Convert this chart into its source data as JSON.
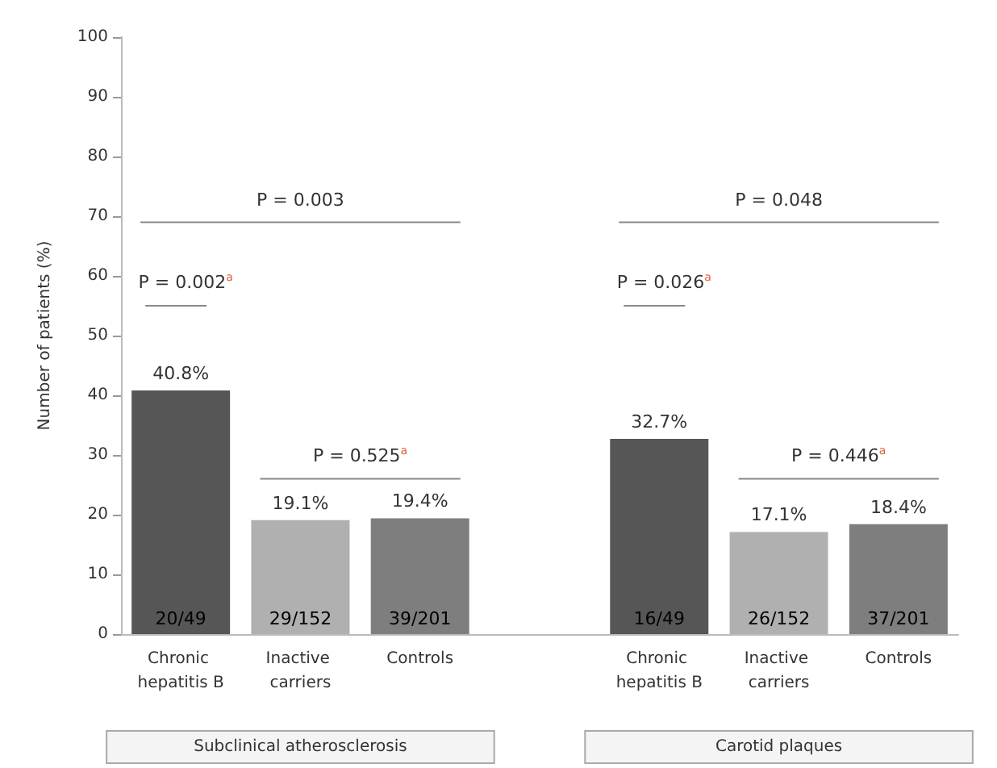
{
  "chart_data": {
    "type": "bar",
    "ylabel": "Number of patients (%)",
    "categories": [
      "Chronic hepatitis B",
      "Inactive carriers",
      "Controls",
      null,
      "Chronic hepatitis B",
      "Inactive carriers",
      "Controls"
    ],
    "values": [
      40.8,
      19.1,
      19.4,
      null,
      32.7,
      17.1,
      18.4
    ],
    "colors": [
      "#565656",
      "#b0b0b0",
      "#7e7e7e",
      null,
      "#565656",
      "#b0b0b0",
      "#7e7e7e"
    ],
    "value_labels": [
      "40.8%",
      "19.1%",
      "19.4%",
      null,
      "32.7%",
      "17.1%",
      "18.4%"
    ],
    "ylim": [
      0,
      100
    ],
    "yticks": [
      0,
      10,
      20,
      30,
      40,
      50,
      60,
      70,
      80,
      90,
      100
    ],
    "grid": false,
    "annotations": [
      "20/49",
      "29/152",
      "39/201",
      "16/49",
      "26/152",
      "37/201",
      "P = 0.002$^{a}$",
      "P = 0.003",
      "P = 0.525$^{a}$",
      "P = 0.026$^{a}$",
      "P = 0.048",
      "P = 0.446$^{a}$",
      "Subclinical atherosclerosis",
      "Carotid plaques"
    ]
  }
}
